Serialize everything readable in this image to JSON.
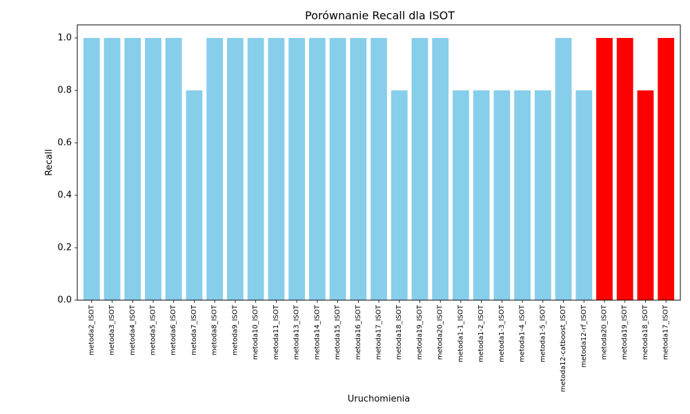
{
  "chart_data": {
    "type": "bar",
    "title": "Porównanie Recall dla ISOT",
    "xlabel": "Uruchomienia",
    "ylabel": "Recall",
    "ylim": [
      0,
      1.05
    ],
    "yticks": [
      "0.0",
      "0.2",
      "0.4",
      "0.6",
      "0.8",
      "1.0"
    ],
    "grid": false,
    "categories": [
      "metoda2_ISOT",
      "metoda3_ISOT",
      "metoda4_ISOT",
      "metoda5_ISOT",
      "metoda6_ISOT",
      "metoda7_ISOT",
      "metoda8_ISOT",
      "metoda9_ISOT",
      "metoda10_ISOT",
      "metoda11_ISOT",
      "metoda13_ISOT",
      "metoda14_ISOT",
      "metoda15_ISOT",
      "metoda16_ISOT",
      "metoda17_ISOT",
      "metoda18_ISOT",
      "metoda19_ISOT",
      "metoda20_ISOT",
      "metoda1-1_ISOT",
      "metoda1-2_ISOT",
      "metoda1-3_ISOT",
      "metoda1-4_ISOT",
      "metoda1-5_ISOT",
      "metoda12-catboost_ISOT",
      "metoda12-rf_ISOT",
      "metoda20_ISOT",
      "metoda19_ISOT",
      "metoda18_ISOT",
      "metoda17_ISOT"
    ],
    "values": [
      1.0,
      1.0,
      1.0,
      1.0,
      1.0,
      0.8,
      1.0,
      1.0,
      1.0,
      1.0,
      1.0,
      1.0,
      1.0,
      1.0,
      1.0,
      0.8,
      1.0,
      1.0,
      0.8,
      0.8,
      0.8,
      0.8,
      0.8,
      1.0,
      0.8,
      1.0,
      1.0,
      0.8,
      1.0
    ],
    "bar_colors": [
      "#87CEEB",
      "#87CEEB",
      "#87CEEB",
      "#87CEEB",
      "#87CEEB",
      "#87CEEB",
      "#87CEEB",
      "#87CEEB",
      "#87CEEB",
      "#87CEEB",
      "#87CEEB",
      "#87CEEB",
      "#87CEEB",
      "#87CEEB",
      "#87CEEB",
      "#87CEEB",
      "#87CEEB",
      "#87CEEB",
      "#87CEEB",
      "#87CEEB",
      "#87CEEB",
      "#87CEEB",
      "#87CEEB",
      "#87CEEB",
      "#87CEEB",
      "#FF0000",
      "#FF0000",
      "#FF0000",
      "#FF0000"
    ]
  }
}
